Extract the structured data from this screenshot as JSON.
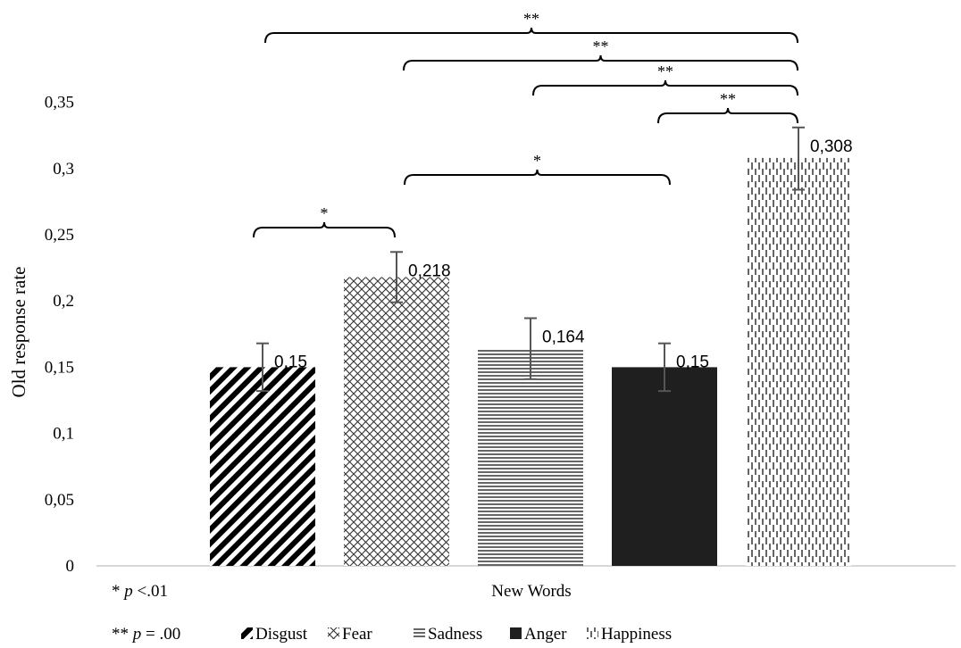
{
  "chart_data": {
    "type": "bar",
    "xlabel": "New Words",
    "ylabel": "Old response rate",
    "ylim": [
      0,
      0.35
    ],
    "yticks": [
      "0",
      "0,05",
      "0,1",
      "0,15",
      "0,2",
      "0,25",
      "0,3",
      "0,35"
    ],
    "categories": [
      "Disgust",
      "Fear",
      "Sadness",
      "Anger",
      "Happiness"
    ],
    "values": [
      0.15,
      0.218,
      0.164,
      0.15,
      0.308
    ],
    "value_labels": [
      "0,15",
      "0,218",
      "0,164",
      "0,15",
      "0,308"
    ],
    "error_low": [
      0.132,
      0.199,
      0.141,
      0.132,
      0.284
    ],
    "error_high": [
      0.168,
      0.237,
      0.187,
      0.168,
      0.331
    ],
    "patterns": [
      "diagonal-stripes",
      "crosshatch",
      "horizontal-lines",
      "solid",
      "vertical-dashes"
    ],
    "legend_position": "bottom",
    "significance": [
      {
        "from": "Disgust",
        "to": "Fear",
        "label": "*"
      },
      {
        "from": "Fear",
        "to": "Anger",
        "label": "*"
      },
      {
        "from": "Anger",
        "to": "Happiness",
        "label": "**"
      },
      {
        "from": "Sadness",
        "to": "Happiness",
        "label": "**"
      },
      {
        "from": "Fear",
        "to": "Happiness",
        "label": "**"
      },
      {
        "from": "Disgust",
        "to": "Happiness",
        "label": "**"
      }
    ],
    "notes": [
      {
        "stars": "*",
        "p": "p",
        "rest": " <.01"
      },
      {
        "stars": "**",
        "p": "p",
        "rest": " = .00"
      }
    ]
  }
}
